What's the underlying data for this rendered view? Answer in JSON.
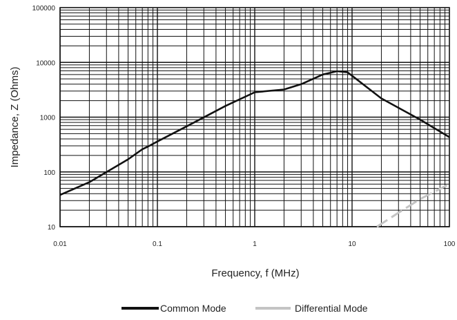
{
  "chart_data": {
    "type": "line",
    "title": "",
    "xlabel": "Frequency, f (MHz)",
    "ylabel": "Impedance, Z (Ohms)",
    "x_scale": "log",
    "y_scale": "log",
    "xlim": [
      0.01,
      100
    ],
    "ylim": [
      10,
      100000
    ],
    "x_ticks": [
      "0.01",
      "0.1",
      "1",
      "10",
      "100"
    ],
    "y_ticks": [
      "10",
      "100",
      "1000",
      "10000",
      "100000"
    ],
    "grid": true,
    "legend_position": "bottom",
    "series": [
      {
        "name": "Common Mode",
        "color": "#111111",
        "style": "solid",
        "points": [
          [
            0.01,
            38
          ],
          [
            0.02,
            65
          ],
          [
            0.05,
            170
          ],
          [
            0.07,
            260
          ],
          [
            0.08,
            290
          ],
          [
            0.1,
            360
          ],
          [
            0.2,
            680
          ],
          [
            0.5,
            1600
          ],
          [
            1,
            2850
          ],
          [
            2,
            3200
          ],
          [
            3,
            4000
          ],
          [
            5,
            6000
          ],
          [
            7,
            6900
          ],
          [
            9,
            6600
          ],
          [
            20,
            2200
          ],
          [
            50,
            900
          ],
          [
            100,
            430
          ]
        ]
      },
      {
        "name": "Differential Mode",
        "color": "#c4c4c4",
        "style": "dashed",
        "points": [
          [
            18,
            10
          ],
          [
            30,
            18
          ],
          [
            50,
            32
          ],
          [
            100,
            60
          ]
        ]
      }
    ]
  }
}
